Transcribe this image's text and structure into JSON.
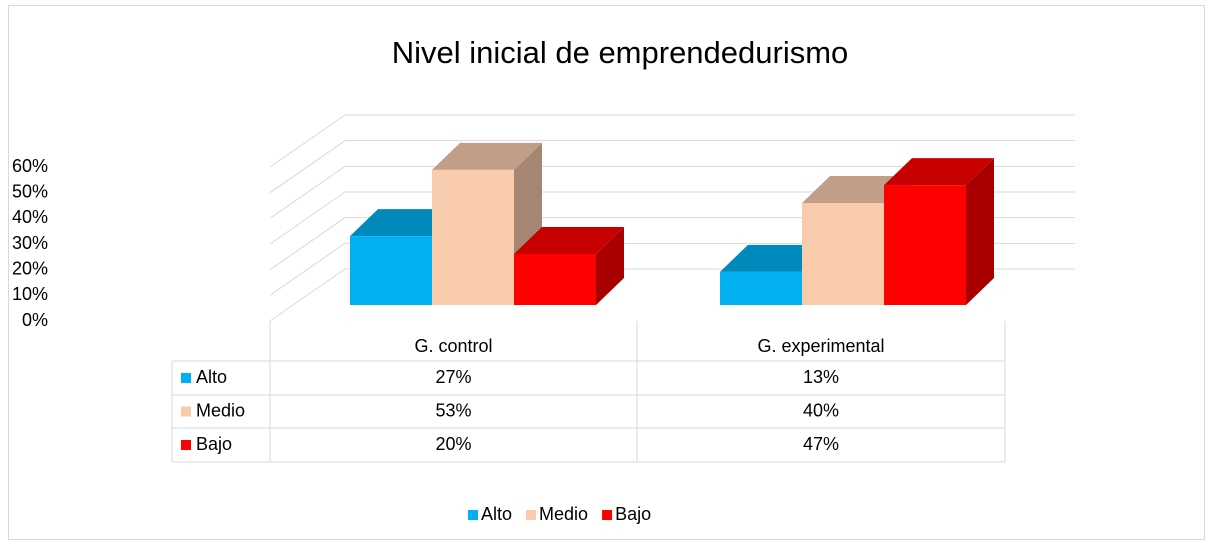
{
  "chart_data": {
    "type": "bar3d",
    "title": "Nivel inicial de emprendedurismo",
    "categories": [
      "G. control",
      "G. experimental"
    ],
    "series": [
      {
        "name": "Alto",
        "color": "#00b0f0",
        "values": [
          27,
          13
        ],
        "value_labels": [
          "27%",
          "13%"
        ]
      },
      {
        "name": "Medio",
        "color": "#f8cbad",
        "values": [
          53,
          40
        ],
        "value_labels": [
          "53%",
          "40%"
        ]
      },
      {
        "name": "Bajo",
        "color": "#ff0000",
        "values": [
          20,
          47
        ],
        "value_labels": [
          "20%",
          "47%"
        ]
      }
    ],
    "ylim": [
      0,
      60
    ],
    "yticks": [
      {
        "value": 0,
        "label": "0%"
      },
      {
        "value": 10,
        "label": "10%"
      },
      {
        "value": 20,
        "label": "20%"
      },
      {
        "value": 30,
        "label": "30%"
      },
      {
        "value": 40,
        "label": "40%"
      },
      {
        "value": 50,
        "label": "50%"
      },
      {
        "value": 60,
        "label": "60%"
      }
    ],
    "grid": true,
    "legend": "bottom",
    "data_table": true
  }
}
